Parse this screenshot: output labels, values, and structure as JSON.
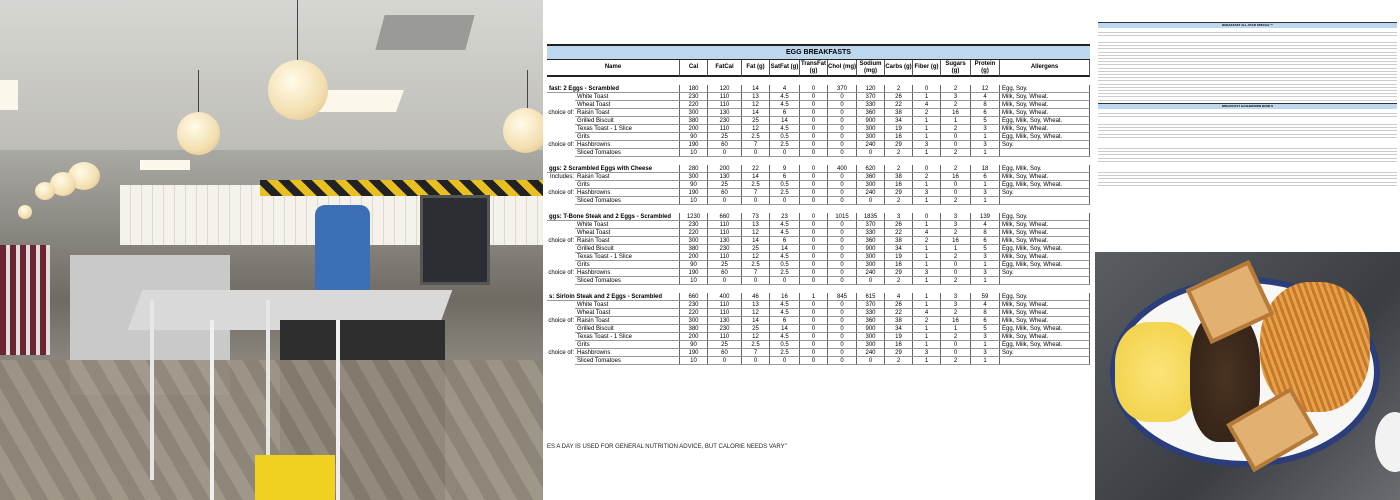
{
  "doc": {
    "title": "EGG BREAKFASTS",
    "columns": [
      "Name",
      "Cal",
      "FatCal",
      "Fat (g)",
      "SatFat (g)",
      "TransFat (g)",
      "Chol (mg)",
      "Sodium (mg)",
      "Carbs (g)",
      "Fiber (g)",
      "Sugars (g)",
      "Protein (g)",
      "Allergens"
    ],
    "groups": [
      {
        "rows": [
          {
            "label": "",
            "name": "fast: 2 Eggs - Scrambled",
            "bold": true,
            "vals": [
              "180",
              "120",
              "14",
              "4",
              "0",
              "370",
              "120",
              "2",
              "0",
              "2",
              "12"
            ],
            "allergens": "Egg, Soy."
          },
          {
            "label": "",
            "name": "White Toast",
            "vals": [
              "230",
              "110",
              "13",
              "4.5",
              "0",
              "0",
              "370",
              "26",
              "1",
              "3",
              "4"
            ],
            "allergens": "Milk, Soy, Wheat."
          },
          {
            "label": "",
            "name": "Wheat Toast",
            "vals": [
              "220",
              "110",
              "12",
              "4.5",
              "0",
              "0",
              "330",
              "22",
              "4",
              "2",
              "8"
            ],
            "allergens": "Milk, Soy, Wheat."
          },
          {
            "label": "choice of:",
            "name": "Raisin Toast",
            "vals": [
              "300",
              "130",
              "14",
              "6",
              "0",
              "0",
              "360",
              "38",
              "2",
              "16",
              "6"
            ],
            "allergens": "Milk, Soy, Wheat."
          },
          {
            "label": "",
            "name": "Grilled Biscuit",
            "vals": [
              "380",
              "230",
              "25",
              "14",
              "0",
              "0",
              "900",
              "34",
              "1",
              "1",
              "5"
            ],
            "allergens": "Egg, Milk, Soy, Wheat."
          },
          {
            "label": "",
            "name": "Texas Toast - 1 Slice",
            "vals": [
              "200",
              "110",
              "12",
              "4.5",
              "0",
              "0",
              "300",
              "19",
              "1",
              "2",
              "3"
            ],
            "allergens": "Milk, Soy, Wheat."
          },
          {
            "label": "",
            "name": "Grits",
            "vals": [
              "90",
              "25",
              "2.5",
              "0.5",
              "0",
              "0",
              "300",
              "16",
              "1",
              "0",
              "1"
            ],
            "allergens": "Egg, Milk, Soy, Wheat."
          },
          {
            "label": "choice of:",
            "name": "Hashbrowns",
            "vals": [
              "190",
              "60",
              "7",
              "2.5",
              "0",
              "0",
              "240",
              "29",
              "3",
              "0",
              "3"
            ],
            "allergens": "Soy."
          },
          {
            "label": "",
            "name": "Sliced Tomatoes",
            "vals": [
              "10",
              "0",
              "0",
              "0",
              "0",
              "0",
              "0",
              "2",
              "1",
              "2",
              "1"
            ],
            "allergens": ""
          }
        ]
      },
      {
        "rows": [
          {
            "label": "",
            "name": "ggs: 2 Scrambled Eggs with Cheese",
            "bold": true,
            "vals": [
              "280",
              "200",
              "22",
              "9",
              "0",
              "400",
              "620",
              "2",
              "0",
              "2",
              "18"
            ],
            "allergens": "Egg, Milk, Soy."
          },
          {
            "label": "Includes:",
            "name": "Raisin Toast",
            "vals": [
              "300",
              "130",
              "14",
              "6",
              "0",
              "0",
              "360",
              "38",
              "2",
              "16",
              "6"
            ],
            "allergens": "Milk, Soy, Wheat."
          },
          {
            "label": "",
            "name": "Grits",
            "vals": [
              "90",
              "25",
              "2.5",
              "0.5",
              "0",
              "0",
              "300",
              "16",
              "1",
              "0",
              "1"
            ],
            "allergens": "Egg, Milk, Soy, Wheat."
          },
          {
            "label": "choice of:",
            "name": "Hashbrowns",
            "vals": [
              "190",
              "60",
              "7",
              "2.5",
              "0",
              "0",
              "240",
              "29",
              "3",
              "0",
              "3"
            ],
            "allergens": "Soy."
          },
          {
            "label": "",
            "name": "Sliced Tomatoes",
            "vals": [
              "10",
              "0",
              "0",
              "0",
              "0",
              "0",
              "0",
              "2",
              "1",
              "2",
              "1"
            ],
            "allergens": ""
          }
        ]
      },
      {
        "rows": [
          {
            "label": "",
            "name": "ggs: T-Bone Steak and 2 Eggs - Scrambled",
            "bold": true,
            "vals": [
              "1230",
              "660",
              "73",
              "23",
              "0",
              "1015",
              "1835",
              "3",
              "0",
              "3",
              "139"
            ],
            "allergens": "Egg, Soy."
          },
          {
            "label": "",
            "name": "White Toast",
            "vals": [
              "230",
              "110",
              "13",
              "4.5",
              "0",
              "0",
              "370",
              "26",
              "1",
              "3",
              "4"
            ],
            "allergens": "Milk, Soy, Wheat."
          },
          {
            "label": "",
            "name": "Wheat Toast",
            "vals": [
              "220",
              "110",
              "12",
              "4.5",
              "0",
              "0",
              "330",
              "22",
              "4",
              "2",
              "8"
            ],
            "allergens": "Milk, Soy, Wheat."
          },
          {
            "label": "choice of:",
            "name": "Raisin Toast",
            "vals": [
              "300",
              "130",
              "14",
              "6",
              "0",
              "0",
              "360",
              "38",
              "2",
              "16",
              "6"
            ],
            "allergens": "Milk, Soy, Wheat."
          },
          {
            "label": "",
            "name": "Grilled Biscuit",
            "vals": [
              "380",
              "230",
              "25",
              "14",
              "0",
              "0",
              "900",
              "34",
              "1",
              "1",
              "5"
            ],
            "allergens": "Egg, Milk, Soy, Wheat."
          },
          {
            "label": "",
            "name": "Texas Toast - 1 Slice",
            "vals": [
              "200",
              "110",
              "12",
              "4.5",
              "0",
              "0",
              "300",
              "19",
              "1",
              "2",
              "3"
            ],
            "allergens": "Milk, Soy, Wheat."
          },
          {
            "label": "",
            "name": "Grits",
            "vals": [
              "90",
              "25",
              "2.5",
              "0.5",
              "0",
              "0",
              "300",
              "16",
              "1",
              "0",
              "1"
            ],
            "allergens": "Egg, Milk, Soy, Wheat."
          },
          {
            "label": "choice of:",
            "name": "Hashbrowns",
            "vals": [
              "190",
              "60",
              "7",
              "2.5",
              "0",
              "0",
              "240",
              "29",
              "3",
              "0",
              "3"
            ],
            "allergens": "Soy."
          },
          {
            "label": "",
            "name": "Sliced Tomatoes",
            "vals": [
              "10",
              "0",
              "0",
              "0",
              "0",
              "0",
              "0",
              "2",
              "1",
              "2",
              "1"
            ],
            "allergens": ""
          }
        ]
      },
      {
        "rows": [
          {
            "label": "",
            "name": "s: Sirloin Steak and 2 Eggs - Scrambled",
            "bold": true,
            "vals": [
              "660",
              "400",
              "46",
              "16",
              "1",
              "845",
              "615",
              "4",
              "1",
              "3",
              "59"
            ],
            "allergens": "Egg, Soy."
          },
          {
            "label": "",
            "name": "White Toast",
            "vals": [
              "230",
              "110",
              "13",
              "4.5",
              "0",
              "0",
              "370",
              "26",
              "1",
              "3",
              "4"
            ],
            "allergens": "Milk, Soy, Wheat."
          },
          {
            "label": "",
            "name": "Wheat Toast",
            "vals": [
              "220",
              "110",
              "12",
              "4.5",
              "0",
              "0",
              "330",
              "22",
              "4",
              "2",
              "8"
            ],
            "allergens": "Milk, Soy, Wheat."
          },
          {
            "label": "choice of:",
            "name": "Raisin Toast",
            "vals": [
              "300",
              "130",
              "14",
              "6",
              "0",
              "0",
              "360",
              "38",
              "2",
              "16",
              "6"
            ],
            "allergens": "Milk, Soy, Wheat."
          },
          {
            "label": "",
            "name": "Grilled Biscuit",
            "vals": [
              "380",
              "230",
              "25",
              "14",
              "0",
              "0",
              "900",
              "34",
              "1",
              "1",
              "5"
            ],
            "allergens": "Egg, Milk, Soy, Wheat."
          },
          {
            "label": "",
            "name": "Texas Toast - 1 Slice",
            "vals": [
              "200",
              "110",
              "12",
              "4.5",
              "0",
              "0",
              "300",
              "19",
              "1",
              "2",
              "3"
            ],
            "allergens": "Milk, Soy, Wheat."
          },
          {
            "label": "",
            "name": "Grits",
            "vals": [
              "90",
              "25",
              "2.5",
              "0.5",
              "0",
              "0",
              "300",
              "16",
              "1",
              "0",
              "1"
            ],
            "allergens": "Egg, Milk, Soy, Wheat."
          },
          {
            "label": "choice of:",
            "name": "Hashbrowns",
            "vals": [
              "190",
              "60",
              "7",
              "2.5",
              "0",
              "0",
              "240",
              "29",
              "3",
              "0",
              "3"
            ],
            "allergens": "Soy."
          },
          {
            "label": "",
            "name": "Sliced Tomatoes",
            "vals": [
              "10",
              "0",
              "0",
              "0",
              "0",
              "0",
              "0",
              "2",
              "1",
              "2",
              "1"
            ],
            "allergens": ""
          }
        ]
      }
    ],
    "footer_note": "ES A DAY IS USED FOR GENERAL NUTRITION ADVICE, BUT CALORIE NEEDS VARY\""
  },
  "doc_right": {
    "section1_title": "BREAKFAST ALL-STAR SPECIAL™",
    "section2_title": "BREAKFAST HASHBROWN BOWLS"
  },
  "colors": {
    "header_blue": "#bdd7ee"
  }
}
